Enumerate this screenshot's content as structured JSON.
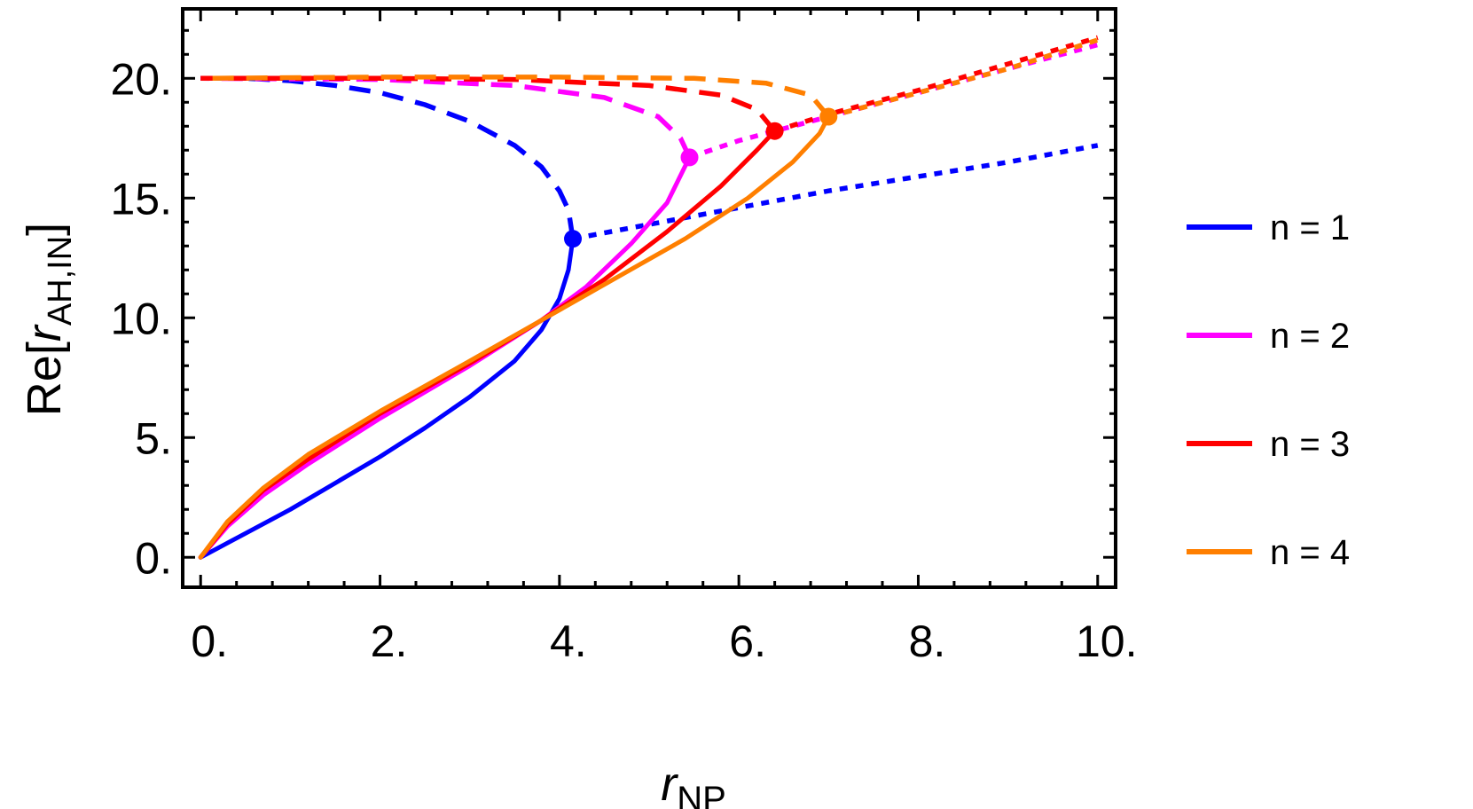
{
  "chart_data": {
    "type": "line",
    "xlabel": {
      "base": "r",
      "sub": "NP"
    },
    "ylabel": {
      "prefix": "Re[",
      "base": "r",
      "sub": "AH,IN",
      "suffix": "]"
    },
    "xlim": [
      -0.2,
      10.2
    ],
    "ylim": [
      -1.25,
      22.9
    ],
    "x_ticks": [
      0,
      2,
      4,
      6,
      8,
      10
    ],
    "x_tick_labels": [
      "0.",
      "2.",
      "4.",
      "6.",
      "8.",
      "10."
    ],
    "y_ticks": [
      0,
      5,
      10,
      15,
      20
    ],
    "y_tick_labels": [
      "0.",
      "5.",
      "10.",
      "15.",
      "20."
    ],
    "grid": false,
    "legend_position": "right",
    "series": [
      {
        "name": "n = 1",
        "color": "#0000ff",
        "solid": [
          [
            0,
            0
          ],
          [
            0.5,
            1.0
          ],
          [
            1.0,
            2.0
          ],
          [
            1.5,
            3.1
          ],
          [
            2.0,
            4.2
          ],
          [
            2.5,
            5.4
          ],
          [
            3.0,
            6.7
          ],
          [
            3.5,
            8.2
          ],
          [
            3.8,
            9.5
          ],
          [
            4.0,
            10.8
          ],
          [
            4.1,
            12.0
          ],
          [
            4.15,
            13.3
          ]
        ],
        "dashed": [
          [
            4.15,
            13.3
          ],
          [
            4.1,
            14.5
          ],
          [
            4.0,
            15.3
          ],
          [
            3.8,
            16.3
          ],
          [
            3.5,
            17.2
          ],
          [
            3.0,
            18.2
          ],
          [
            2.5,
            18.9
          ],
          [
            2.0,
            19.4
          ],
          [
            1.5,
            19.7
          ],
          [
            1.0,
            19.9
          ],
          [
            0.5,
            20.0
          ],
          [
            0,
            20.0
          ]
        ],
        "dotted": [
          [
            4.15,
            13.3
          ],
          [
            5.0,
            13.9
          ],
          [
            6.0,
            14.6
          ],
          [
            7.0,
            15.3
          ],
          [
            8.0,
            15.9
          ],
          [
            9.0,
            16.5
          ],
          [
            10.0,
            17.2
          ]
        ],
        "point": [
          4.15,
          13.3
        ]
      },
      {
        "name": "n = 2",
        "color": "#ff00ff",
        "solid": [
          [
            0,
            0
          ],
          [
            0.3,
            1.3
          ],
          [
            0.7,
            2.6
          ],
          [
            1.2,
            3.9
          ],
          [
            2.0,
            5.8
          ],
          [
            3.0,
            8.0
          ],
          [
            3.8,
            9.9
          ],
          [
            4.3,
            11.3
          ],
          [
            4.8,
            13.1
          ],
          [
            5.2,
            14.8
          ],
          [
            5.45,
            16.7
          ]
        ],
        "dashed": [
          [
            5.45,
            16.7
          ],
          [
            5.35,
            17.5
          ],
          [
            5.1,
            18.4
          ],
          [
            4.5,
            19.2
          ],
          [
            3.5,
            19.7
          ],
          [
            2.0,
            19.95
          ],
          [
            0,
            20.0
          ]
        ],
        "dotted": [
          [
            5.45,
            16.7
          ],
          [
            6.0,
            17.4
          ],
          [
            7.0,
            18.4
          ],
          [
            8.0,
            19.4
          ],
          [
            9.0,
            20.4
          ],
          [
            10.0,
            21.4
          ]
        ],
        "point": [
          5.45,
          16.7
        ]
      },
      {
        "name": "n = 3",
        "color": "#ff0000",
        "solid": [
          [
            0,
            0
          ],
          [
            0.3,
            1.4
          ],
          [
            0.7,
            2.8
          ],
          [
            1.2,
            4.1
          ],
          [
            2.0,
            6.0
          ],
          [
            3.0,
            8.1
          ],
          [
            3.8,
            9.9
          ],
          [
            4.5,
            11.6
          ],
          [
            5.2,
            13.6
          ],
          [
            5.8,
            15.5
          ],
          [
            6.2,
            17.0
          ],
          [
            6.4,
            17.8
          ]
        ],
        "dashed": [
          [
            6.4,
            17.8
          ],
          [
            6.2,
            18.7
          ],
          [
            5.8,
            19.3
          ],
          [
            5.0,
            19.7
          ],
          [
            3.5,
            19.95
          ],
          [
            2.0,
            20.0
          ],
          [
            0,
            20.0
          ]
        ],
        "dotted": [
          [
            6.4,
            17.8
          ],
          [
            7.0,
            18.5
          ],
          [
            8.0,
            19.5
          ],
          [
            9.0,
            20.6
          ],
          [
            10.0,
            21.7
          ]
        ],
        "point": [
          6.4,
          17.8
        ]
      },
      {
        "name": "n = 4",
        "color": "#ff7f00",
        "solid": [
          [
            0,
            0
          ],
          [
            0.3,
            1.5
          ],
          [
            0.7,
            2.9
          ],
          [
            1.2,
            4.3
          ],
          [
            2.0,
            6.1
          ],
          [
            3.0,
            8.2
          ],
          [
            3.8,
            9.9
          ],
          [
            4.6,
            11.6
          ],
          [
            5.4,
            13.3
          ],
          [
            6.1,
            15.0
          ],
          [
            6.6,
            16.5
          ],
          [
            6.9,
            17.7
          ],
          [
            7.0,
            18.4
          ]
        ],
        "dashed": [
          [
            7.0,
            18.4
          ],
          [
            6.8,
            19.3
          ],
          [
            6.3,
            19.8
          ],
          [
            5.5,
            20.0
          ],
          [
            4.0,
            20.05
          ],
          [
            2.0,
            20.05
          ],
          [
            0,
            20.0
          ]
        ],
        "dotted": [
          [
            7.0,
            18.4
          ],
          [
            8.0,
            19.4
          ],
          [
            9.0,
            20.4
          ],
          [
            10.0,
            21.6
          ]
        ],
        "point": [
          7.0,
          18.4
        ]
      }
    ]
  }
}
